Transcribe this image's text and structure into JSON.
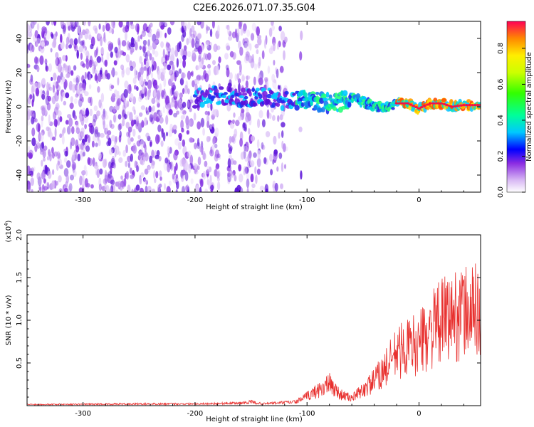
{
  "title": "C2E6.2026.071.07.35.G04",
  "chart_data": [
    {
      "type": "heatmap",
      "name": "spectrogram",
      "xlabel": "Height of straight line (km)",
      "ylabel": "Frequency (Hz)",
      "xlim": [
        -350,
        55
      ],
      "ylim": [
        -50,
        50
      ],
      "xticks": [
        -300,
        -200,
        -100,
        0
      ],
      "xtick_labels": [
        "-300",
        "-200",
        "-100",
        "0"
      ],
      "yticks": [
        -40,
        -20,
        0,
        20,
        40
      ],
      "ytick_labels": [
        "-40",
        "-20",
        "0",
        "20",
        "40"
      ],
      "signal_trace": {
        "height_km": [
          -200,
          -180,
          -160,
          -140,
          -120,
          -100,
          -80,
          -70,
          -60,
          -50,
          -40,
          -30,
          -25,
          -20,
          -10,
          0,
          10,
          20,
          30,
          40,
          55
        ],
        "frequency_hz": [
          5,
          7,
          5,
          6,
          4,
          4,
          2,
          3,
          5,
          3,
          0,
          0,
          1,
          2,
          2,
          -1,
          2,
          2,
          0,
          1,
          1
        ]
      },
      "colorbar": {
        "label": "Normalized spectral amplitude",
        "range": [
          0,
          0.95
        ],
        "ticks": [
          0.0,
          0.2,
          0.4,
          0.6,
          0.8
        ],
        "tick_labels": [
          "0.0",
          "0.2",
          "0.4",
          "0.6",
          "0.8"
        ]
      }
    },
    {
      "type": "line",
      "name": "snr",
      "xlabel": "Height of straight line (km)",
      "ylabel": "SNR (10 * v/v)",
      "scale_label": "(x10",
      "scale_exp": "4",
      "xlim": [
        -350,
        55
      ],
      "ylim": [
        0,
        2.0
      ],
      "xticks": [
        -300,
        -200,
        -100,
        0
      ],
      "xtick_labels": [
        "-300",
        "-200",
        "-100",
        "0"
      ],
      "yticks": [
        0.5,
        1.0,
        1.5,
        2.0
      ],
      "ytick_labels": [
        "0.5",
        "1.0",
        "1.5",
        "2.0"
      ],
      "color": "#e8302e",
      "envelope": {
        "x": [
          -350,
          -200,
          -160,
          -150,
          -140,
          -110,
          -100,
          -90,
          -80,
          -70,
          -60,
          -50,
          -40,
          -30,
          -20,
          -10,
          0,
          10,
          20,
          30,
          40,
          55
        ],
        "y": [
          0.02,
          0.03,
          0.04,
          0.06,
          0.03,
          0.06,
          0.15,
          0.25,
          0.35,
          0.18,
          0.12,
          0.25,
          0.4,
          0.6,
          0.85,
          0.95,
          1.0,
          1.2,
          1.35,
          1.45,
          1.5,
          1.55
        ]
      }
    }
  ]
}
